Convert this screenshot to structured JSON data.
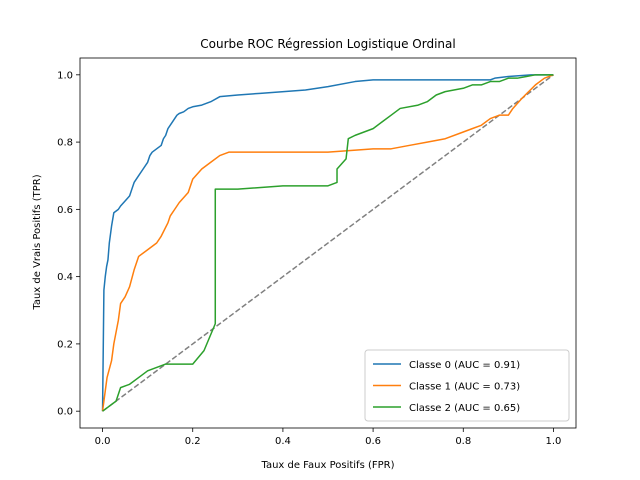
{
  "chart_data": {
    "type": "line",
    "title": "Courbe ROC Régression Logistique Ordinal",
    "xlabel": "Taux de Faux Positifs (FPR)",
    "ylabel": "Taux de Vrais Positifs (TPR)",
    "xlim": [
      -0.05,
      1.05
    ],
    "ylim": [
      -0.05,
      1.05
    ],
    "xticks": [
      "0.0",
      "0.2",
      "0.4",
      "0.6",
      "0.8",
      "1.0"
    ],
    "yticks": [
      "0.0",
      "0.2",
      "0.4",
      "0.6",
      "0.8",
      "1.0"
    ],
    "grid": false,
    "legend_position": "lower-right",
    "series": [
      {
        "name": "Classe 0 (AUC = 0.91)",
        "color": "#1f77b4",
        "x": [
          0.0,
          0.003,
          0.006,
          0.009,
          0.012,
          0.015,
          0.02,
          0.025,
          0.035,
          0.04,
          0.06,
          0.065,
          0.07,
          0.08,
          0.09,
          0.1,
          0.105,
          0.11,
          0.12,
          0.13,
          0.135,
          0.14,
          0.145,
          0.155,
          0.16,
          0.165,
          0.17,
          0.18,
          0.19,
          0.2,
          0.22,
          0.24,
          0.26,
          0.3,
          0.35,
          0.45,
          0.5,
          0.56,
          0.6,
          0.86,
          0.87,
          0.9,
          0.95,
          1.0
        ],
        "y": [
          0.0,
          0.36,
          0.4,
          0.43,
          0.45,
          0.5,
          0.55,
          0.59,
          0.6,
          0.61,
          0.64,
          0.66,
          0.68,
          0.7,
          0.72,
          0.74,
          0.76,
          0.77,
          0.78,
          0.79,
          0.81,
          0.82,
          0.84,
          0.86,
          0.87,
          0.88,
          0.885,
          0.89,
          0.9,
          0.905,
          0.91,
          0.92,
          0.935,
          0.94,
          0.945,
          0.955,
          0.965,
          0.98,
          0.985,
          0.985,
          0.99,
          0.995,
          1.0,
          1.0
        ]
      },
      {
        "name": "Classe 1 (AUC = 0.73)",
        "color": "#ff7f0e",
        "x": [
          0.0,
          0.005,
          0.01,
          0.02,
          0.025,
          0.035,
          0.04,
          0.05,
          0.06,
          0.07,
          0.08,
          0.1,
          0.12,
          0.13,
          0.145,
          0.15,
          0.155,
          0.16,
          0.165,
          0.17,
          0.19,
          0.2,
          0.22,
          0.24,
          0.26,
          0.28,
          0.3,
          0.4,
          0.5,
          0.6,
          0.62,
          0.64,
          0.68,
          0.72,
          0.76,
          0.8,
          0.82,
          0.84,
          0.86,
          0.88,
          0.9,
          0.91,
          0.93,
          0.96,
          0.98,
          1.0
        ],
        "y": [
          0.0,
          0.05,
          0.1,
          0.15,
          0.2,
          0.27,
          0.32,
          0.34,
          0.37,
          0.42,
          0.46,
          0.48,
          0.5,
          0.52,
          0.56,
          0.58,
          0.59,
          0.6,
          0.61,
          0.62,
          0.65,
          0.69,
          0.72,
          0.74,
          0.76,
          0.77,
          0.77,
          0.77,
          0.77,
          0.78,
          0.78,
          0.78,
          0.79,
          0.8,
          0.81,
          0.83,
          0.84,
          0.85,
          0.87,
          0.88,
          0.88,
          0.9,
          0.93,
          0.97,
          0.99,
          1.0
        ]
      },
      {
        "name": "Classe 2 (AUC = 0.65)",
        "color": "#2ca02c",
        "x": [
          0.0,
          0.03,
          0.04,
          0.06,
          0.08,
          0.1,
          0.14,
          0.2,
          0.225,
          0.25,
          0.25,
          0.3,
          0.4,
          0.5,
          0.52,
          0.52,
          0.54,
          0.545,
          0.56,
          0.6,
          0.62,
          0.64,
          0.66,
          0.7,
          0.72,
          0.74,
          0.76,
          0.8,
          0.82,
          0.84,
          0.86,
          0.88,
          0.9,
          0.92,
          0.94,
          0.96,
          0.98,
          1.0
        ],
        "y": [
          0.0,
          0.03,
          0.07,
          0.08,
          0.1,
          0.12,
          0.14,
          0.14,
          0.18,
          0.26,
          0.66,
          0.66,
          0.67,
          0.67,
          0.68,
          0.72,
          0.75,
          0.81,
          0.82,
          0.84,
          0.86,
          0.88,
          0.9,
          0.91,
          0.92,
          0.94,
          0.95,
          0.96,
          0.97,
          0.97,
          0.98,
          0.98,
          0.99,
          0.99,
          0.995,
          1.0,
          1.0,
          1.0
        ]
      }
    ],
    "reference_line": {
      "x": [
        0,
        1
      ],
      "y": [
        0,
        1
      ],
      "color": "#808080",
      "style": "dashed"
    }
  }
}
